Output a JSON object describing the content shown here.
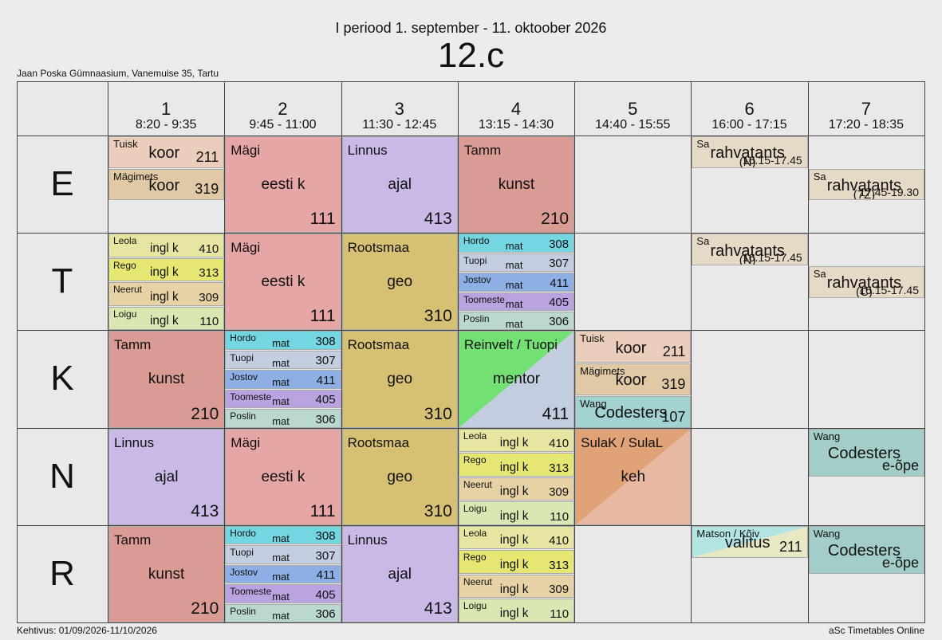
{
  "header": {
    "title": "I periood 1. september - 11. oktoober 2026",
    "class": "12.c",
    "school": "Jaan Poska Gümnaasium, Vanemuise 35, Tartu"
  },
  "footer": {
    "validity": "Kehtivus: 01/09/2026-11/10/2026",
    "brand": "aSc Timetables Online"
  },
  "periods": [
    {
      "num": "1",
      "time": "8:20 - 9:35"
    },
    {
      "num": "2",
      "time": "9:45 - 11:00"
    },
    {
      "num": "3",
      "time": "11:30 - 12:45"
    },
    {
      "num": "4",
      "time": "13:15 - 14:30"
    },
    {
      "num": "5",
      "time": "14:40 - 15:55"
    },
    {
      "num": "6",
      "time": "16:00 - 17:15"
    },
    {
      "num": "7",
      "time": "17:20 - 18:35"
    }
  ],
  "days": [
    {
      "name": "E",
      "slots": [
        [
          {
            "teacher": "Tuisk",
            "subject": "koor",
            "room": "211",
            "color": "#ebcdbb"
          },
          {
            "teacher": "Mägimets",
            "subject": "koor",
            "room": "319",
            "color": "#e2c9a6"
          },
          null
        ],
        [
          {
            "teacher": "Mägi",
            "subject": "eesti k",
            "room": "111",
            "color": "#e6a6a6"
          }
        ],
        [
          {
            "teacher": "Linnus",
            "subject": "ajal",
            "room": "413",
            "color": "#cab9e6"
          }
        ],
        [
          {
            "teacher": "Tamm",
            "subject": "kunst",
            "room": "210",
            "color": "#d99b93"
          }
        ],
        [],
        [
          {
            "teacher": "Sa",
            "subject": "rahvatants",
            "group": "(N)",
            "room": "16.15-17.45",
            "color": "#e6d9c6"
          },
          null,
          null
        ],
        [
          null,
          {
            "teacher": "Sa",
            "subject": "rahvatants",
            "group": "(7Z)",
            "room": "17.45-19.30",
            "color": "#e6d9c6"
          },
          null
        ]
      ]
    },
    {
      "name": "T",
      "slots": [
        [
          {
            "teacher": "Leola",
            "subject": "ingl k",
            "room": "410",
            "color": "#e6e6a2"
          },
          {
            "teacher": "Rego",
            "subject": "ingl k",
            "room": "313",
            "color": "#e6e673"
          },
          {
            "teacher": "Neerut",
            "subject": "ingl k",
            "room": "309",
            "color": "#e6d2a4"
          },
          {
            "teacher": "Loigu",
            "subject": "ingl k",
            "room": "110",
            "color": "#d9e8b3"
          }
        ],
        [
          {
            "teacher": "Mägi",
            "subject": "eesti k",
            "room": "111",
            "color": "#e6a6a6"
          }
        ],
        [
          {
            "teacher": "Rootsmaa",
            "subject": "geo",
            "room": "310",
            "color": "#d6c074"
          }
        ],
        [
          {
            "teacher": "Hordo",
            "subject": "mat",
            "room": "308",
            "color": "#73d6e0"
          },
          {
            "teacher": "Tuopi",
            "subject": "mat",
            "room": "307",
            "color": "#c2cde0"
          },
          {
            "teacher": "Jostov",
            "subject": "mat",
            "room": "411",
            "color": "#8eafe6"
          },
          {
            "teacher": "Toomeste",
            "subject": "mat",
            "room": "405",
            "color": "#b9a3e0"
          },
          {
            "teacher": "Poslin",
            "subject": "mat",
            "room": "306",
            "color": "#bad8d0"
          }
        ],
        [],
        [
          {
            "teacher": "Sa",
            "subject": "rahvatants",
            "group": "(N)",
            "room": "16.15-17.45",
            "color": "#e6d9c6"
          },
          null,
          null
        ],
        [
          null,
          {
            "teacher": "Sa",
            "subject": "rahvatants",
            "group": "(C)",
            "room": "16.15-17.45",
            "color": "#e6d9c6"
          },
          null
        ]
      ]
    },
    {
      "name": "K",
      "slots": [
        [
          {
            "teacher": "Tamm",
            "subject": "kunst",
            "room": "210",
            "color": "#d99b93"
          }
        ],
        [
          {
            "teacher": "Hordo",
            "subject": "mat",
            "room": "308",
            "color": "#73d6e0"
          },
          {
            "teacher": "Tuopi",
            "subject": "mat",
            "room": "307",
            "color": "#c2cde0"
          },
          {
            "teacher": "Jostov",
            "subject": "mat",
            "room": "411",
            "color": "#8eafe6"
          },
          {
            "teacher": "Toomeste",
            "subject": "mat",
            "room": "405",
            "color": "#b9a3e0"
          },
          {
            "teacher": "Poslin",
            "subject": "mat",
            "room": "306",
            "color": "#bad8d0"
          }
        ],
        [
          {
            "teacher": "Rootsmaa",
            "subject": "geo",
            "room": "310",
            "color": "#d6c074"
          }
        ],
        [
          {
            "teacher": "Reinvelt / Tuopi",
            "subject": "mentor",
            "room": "411",
            "color": "#73e073",
            "color2": "#c2cde0"
          }
        ],
        [
          {
            "teacher": "Tuisk",
            "subject": "koor",
            "room": "211",
            "color": "#ebcdbb"
          },
          {
            "teacher": "Mägimets",
            "subject": "koor",
            "room": "319",
            "color": "#e2c9a6"
          },
          {
            "teacher": "Wang",
            "subject": "Codesters",
            "room": "107",
            "color": "#a3d2d2"
          }
        ],
        [],
        []
      ]
    },
    {
      "name": "N",
      "slots": [
        [
          {
            "teacher": "Linnus",
            "subject": "ajal",
            "room": "413",
            "color": "#cab9e6"
          }
        ],
        [
          {
            "teacher": "Mägi",
            "subject": "eesti k",
            "room": "111",
            "color": "#e6a6a6"
          }
        ],
        [
          {
            "teacher": "Rootsmaa",
            "subject": "geo",
            "room": "310",
            "color": "#d6c074"
          }
        ],
        [
          {
            "teacher": "Leola",
            "subject": "ingl k",
            "room": "410",
            "color": "#e6e6a2"
          },
          {
            "teacher": "Rego",
            "subject": "ingl k",
            "room": "313",
            "color": "#e6e673"
          },
          {
            "teacher": "Neerut",
            "subject": "ingl k",
            "room": "309",
            "color": "#e6d2a4"
          },
          {
            "teacher": "Loigu",
            "subject": "ingl k",
            "room": "110",
            "color": "#d9e8b3"
          }
        ],
        [
          {
            "teacher": "SulaK / SulaL",
            "subject": "keh",
            "color": "#e0a276",
            "color2": "#e8b9a2"
          }
        ],
        [],
        [
          {
            "teacher": "Wang",
            "subject": "Codesters",
            "room": "e-õpe",
            "color": "#a3cdc9"
          },
          null
        ]
      ]
    },
    {
      "name": "R",
      "slots": [
        [
          {
            "teacher": "Tamm",
            "subject": "kunst",
            "room": "210",
            "color": "#d99b93"
          }
        ],
        [
          {
            "teacher": "Hordo",
            "subject": "mat",
            "room": "308",
            "color": "#73d6e0"
          },
          {
            "teacher": "Tuopi",
            "subject": "mat",
            "room": "307",
            "color": "#c2cde0"
          },
          {
            "teacher": "Jostov",
            "subject": "mat",
            "room": "411",
            "color": "#8eafe6"
          },
          {
            "teacher": "Toomeste",
            "subject": "mat",
            "room": "405",
            "color": "#b9a3e0"
          },
          {
            "teacher": "Poslin",
            "subject": "mat",
            "room": "306",
            "color": "#bad8d0"
          }
        ],
        [
          {
            "teacher": "Linnus",
            "subject": "ajal",
            "room": "413",
            "color": "#cab9e6"
          }
        ],
        [
          {
            "teacher": "Leola",
            "subject": "ingl k",
            "room": "410",
            "color": "#e6e6a2"
          },
          {
            "teacher": "Rego",
            "subject": "ingl k",
            "room": "313",
            "color": "#e6e673"
          },
          {
            "teacher": "Neerut",
            "subject": "ingl k",
            "room": "309",
            "color": "#e6d2a4"
          },
          {
            "teacher": "Loigu",
            "subject": "ingl k",
            "room": "110",
            "color": "#d9e8b3"
          }
        ],
        [],
        [
          {
            "teacher": "Matson / Kõiv",
            "subject": "valitus",
            "room": "211",
            "color": "#b3e3e3",
            "color2": "#e8e8c4"
          },
          null,
          null
        ],
        [
          {
            "teacher": "Wang",
            "subject": "Codesters",
            "room": "e-õpe",
            "color": "#a3cdc9"
          },
          null
        ]
      ]
    }
  ]
}
